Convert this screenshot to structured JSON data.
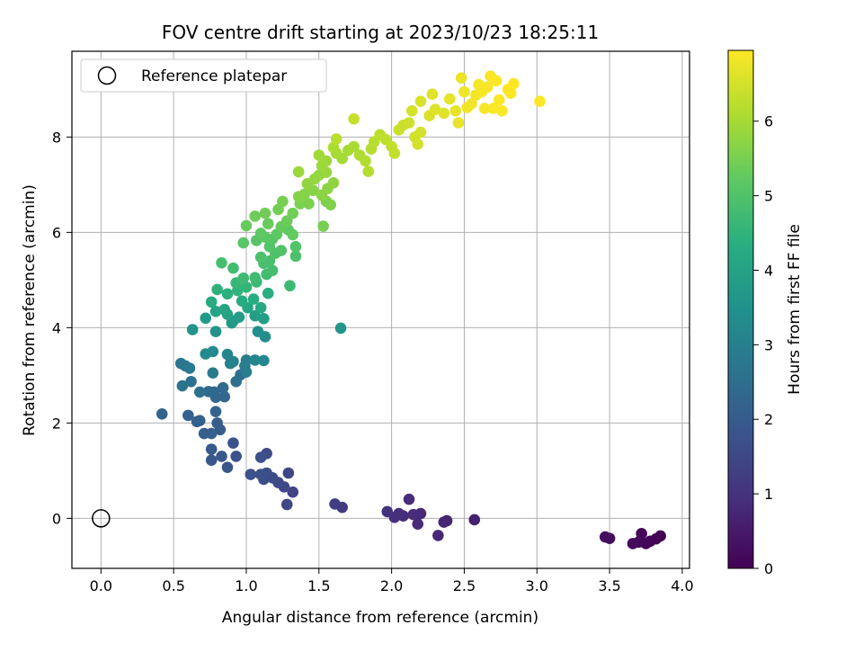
{
  "chart_data": {
    "type": "scatter",
    "title": "FOV centre drift starting at 2023/10/23 18:25:11",
    "xlabel": "Angular distance from reference (arcmin)",
    "ylabel": "Rotation from reference (arcmin)",
    "xlim": [
      -0.2,
      4.05
    ],
    "ylim": [
      -1.05,
      9.8
    ],
    "xticks": [
      "0.0",
      "0.5",
      "1.0",
      "1.5",
      "2.0",
      "2.5",
      "3.0",
      "3.5",
      "4.0"
    ],
    "yticks": [
      "0",
      "2",
      "4",
      "6",
      "8"
    ],
    "grid": true,
    "legend": {
      "position": "top-left",
      "entries": [
        "Reference platepar"
      ]
    },
    "colorbar": {
      "label": "Hours from first FF file",
      "colormap": "viridis",
      "range": [
        0,
        6.95
      ],
      "ticks": [
        "0",
        "1",
        "2",
        "3",
        "4",
        "5",
        "6"
      ]
    },
    "reference_point": {
      "x": 0.0,
      "y": 0.0,
      "marker": "open-circle",
      "color": "#000000"
    },
    "points": [
      {
        "x": 3.85,
        "y": -0.37,
        "h": 0.02
      },
      {
        "x": 3.82,
        "y": -0.43,
        "h": 0.05
      },
      {
        "x": 3.78,
        "y": -0.48,
        "h": 0.08
      },
      {
        "x": 3.75,
        "y": -0.53,
        "h": 0.1
      },
      {
        "x": 3.72,
        "y": -0.32,
        "h": 0.12
      },
      {
        "x": 3.7,
        "y": -0.5,
        "h": 0.15
      },
      {
        "x": 3.66,
        "y": -0.53,
        "h": 0.18
      },
      {
        "x": 3.5,
        "y": -0.42,
        "h": 0.22
      },
      {
        "x": 3.47,
        "y": -0.39,
        "h": 0.25
      },
      {
        "x": 2.57,
        "y": -0.03,
        "h": 0.6
      },
      {
        "x": 2.38,
        "y": -0.05,
        "h": 0.7
      },
      {
        "x": 2.36,
        "y": -0.08,
        "h": 0.72
      },
      {
        "x": 2.32,
        "y": -0.36,
        "h": 0.75
      },
      {
        "x": 2.2,
        "y": 0.1,
        "h": 0.8
      },
      {
        "x": 2.18,
        "y": -0.12,
        "h": 0.82
      },
      {
        "x": 2.15,
        "y": 0.08,
        "h": 0.85
      },
      {
        "x": 2.12,
        "y": 0.4,
        "h": 0.88
      },
      {
        "x": 2.08,
        "y": 0.05,
        "h": 0.9
      },
      {
        "x": 2.05,
        "y": 0.1,
        "h": 0.92
      },
      {
        "x": 2.02,
        "y": 0.02,
        "h": 0.95
      },
      {
        "x": 1.97,
        "y": 0.14,
        "h": 0.98
      },
      {
        "x": 1.66,
        "y": 0.23,
        "h": 1.2
      },
      {
        "x": 1.61,
        "y": 0.3,
        "h": 1.25
      },
      {
        "x": 1.32,
        "y": 0.55,
        "h": 1.4
      },
      {
        "x": 1.29,
        "y": 0.95,
        "h": 1.45
      },
      {
        "x": 1.28,
        "y": 0.29,
        "h": 1.48
      },
      {
        "x": 1.26,
        "y": 0.66,
        "h": 1.5
      },
      {
        "x": 1.22,
        "y": 0.75,
        "h": 1.55
      },
      {
        "x": 1.18,
        "y": 0.85,
        "h": 1.58
      },
      {
        "x": 1.14,
        "y": 1.36,
        "h": 1.6
      },
      {
        "x": 1.14,
        "y": 0.95,
        "h": 1.62
      },
      {
        "x": 1.12,
        "y": 0.82,
        "h": 1.65
      },
      {
        "x": 1.1,
        "y": 0.92,
        "h": 1.68
      },
      {
        "x": 1.1,
        "y": 1.28,
        "h": 1.7
      },
      {
        "x": 1.03,
        "y": 0.92,
        "h": 1.75
      },
      {
        "x": 0.93,
        "y": 1.3,
        "h": 1.78
      },
      {
        "x": 0.91,
        "y": 1.58,
        "h": 1.8
      },
      {
        "x": 0.87,
        "y": 1.07,
        "h": 1.85
      },
      {
        "x": 0.83,
        "y": 1.3,
        "h": 1.88
      },
      {
        "x": 0.76,
        "y": 1.22,
        "h": 1.9
      },
      {
        "x": 0.76,
        "y": 1.45,
        "h": 1.92
      },
      {
        "x": 0.82,
        "y": 1.86,
        "h": 2.0
      },
      {
        "x": 0.8,
        "y": 2.0,
        "h": 2.05
      },
      {
        "x": 0.76,
        "y": 1.78,
        "h": 2.08
      },
      {
        "x": 0.71,
        "y": 1.78,
        "h": 2.1
      },
      {
        "x": 0.68,
        "y": 2.05,
        "h": 2.12
      },
      {
        "x": 0.66,
        "y": 2.03,
        "h": 2.15
      },
      {
        "x": 0.6,
        "y": 2.16,
        "h": 2.18
      },
      {
        "x": 0.79,
        "y": 2.24,
        "h": 2.2
      },
      {
        "x": 0.42,
        "y": 2.19,
        "h": 2.25
      },
      {
        "x": 0.79,
        "y": 2.54,
        "h": 2.28
      },
      {
        "x": 0.85,
        "y": 2.55,
        "h": 2.3
      },
      {
        "x": 0.78,
        "y": 2.65,
        "h": 2.35
      },
      {
        "x": 0.74,
        "y": 2.66,
        "h": 2.38
      },
      {
        "x": 0.84,
        "y": 2.74,
        "h": 2.4
      },
      {
        "x": 0.96,
        "y": 3.01,
        "h": 2.45
      },
      {
        "x": 0.93,
        "y": 2.87,
        "h": 2.5
      },
      {
        "x": 0.68,
        "y": 2.65,
        "h": 2.55
      },
      {
        "x": 0.62,
        "y": 2.87,
        "h": 2.6
      },
      {
        "x": 0.56,
        "y": 2.78,
        "h": 2.65
      },
      {
        "x": 0.55,
        "y": 3.25,
        "h": 2.7
      },
      {
        "x": 0.58,
        "y": 3.2,
        "h": 2.75
      },
      {
        "x": 0.61,
        "y": 3.15,
        "h": 2.8
      },
      {
        "x": 0.77,
        "y": 3.05,
        "h": 2.85
      },
      {
        "x": 1.0,
        "y": 3.07,
        "h": 2.88
      },
      {
        "x": 0.99,
        "y": 3.2,
        "h": 2.92
      },
      {
        "x": 1.0,
        "y": 3.32,
        "h": 2.95
      },
      {
        "x": 0.91,
        "y": 3.29,
        "h": 3.0
      },
      {
        "x": 0.89,
        "y": 3.25,
        "h": 3.05
      },
      {
        "x": 0.87,
        "y": 3.44,
        "h": 3.1
      },
      {
        "x": 1.06,
        "y": 3.32,
        "h": 3.15
      },
      {
        "x": 1.12,
        "y": 3.31,
        "h": 3.2
      },
      {
        "x": 0.77,
        "y": 3.5,
        "h": 3.25
      },
      {
        "x": 0.72,
        "y": 3.45,
        "h": 3.3
      },
      {
        "x": 1.13,
        "y": 3.81,
        "h": 3.4
      },
      {
        "x": 1.08,
        "y": 3.92,
        "h": 3.45
      },
      {
        "x": 0.79,
        "y": 3.92,
        "h": 3.5
      },
      {
        "x": 0.63,
        "y": 3.96,
        "h": 3.55
      },
      {
        "x": 1.65,
        "y": 3.99,
        "h": 3.6
      },
      {
        "x": 0.9,
        "y": 4.1,
        "h": 3.65
      },
      {
        "x": 0.91,
        "y": 4.14,
        "h": 3.7
      },
      {
        "x": 0.72,
        "y": 4.2,
        "h": 3.75
      },
      {
        "x": 0.95,
        "y": 4.22,
        "h": 3.8
      },
      {
        "x": 1.06,
        "y": 4.25,
        "h": 3.85
      },
      {
        "x": 1.12,
        "y": 4.19,
        "h": 3.9
      },
      {
        "x": 0.87,
        "y": 4.28,
        "h": 3.95
      },
      {
        "x": 0.79,
        "y": 4.34,
        "h": 4.0
      },
      {
        "x": 0.85,
        "y": 4.38,
        "h": 4.05
      },
      {
        "x": 1.01,
        "y": 4.42,
        "h": 4.1
      },
      {
        "x": 1.1,
        "y": 4.42,
        "h": 4.15
      },
      {
        "x": 0.76,
        "y": 4.54,
        "h": 4.2
      },
      {
        "x": 0.97,
        "y": 4.56,
        "h": 4.25
      },
      {
        "x": 1.05,
        "y": 4.6,
        "h": 4.3
      },
      {
        "x": 1.15,
        "y": 4.72,
        "h": 4.35
      },
      {
        "x": 0.87,
        "y": 4.71,
        "h": 4.4
      },
      {
        "x": 0.8,
        "y": 4.8,
        "h": 4.45
      },
      {
        "x": 0.94,
        "y": 4.78,
        "h": 4.5
      },
      {
        "x": 1.0,
        "y": 4.85,
        "h": 4.55
      },
      {
        "x": 0.93,
        "y": 4.94,
        "h": 4.6
      },
      {
        "x": 1.07,
        "y": 4.96,
        "h": 4.65
      },
      {
        "x": 1.3,
        "y": 4.88,
        "h": 4.7
      },
      {
        "x": 0.98,
        "y": 5.04,
        "h": 4.72
      },
      {
        "x": 1.06,
        "y": 5.05,
        "h": 4.75
      },
      {
        "x": 1.14,
        "y": 5.12,
        "h": 4.78
      },
      {
        "x": 0.91,
        "y": 5.25,
        "h": 4.8
      },
      {
        "x": 1.18,
        "y": 5.2,
        "h": 4.82
      },
      {
        "x": 0.83,
        "y": 5.36,
        "h": 4.85
      },
      {
        "x": 1.12,
        "y": 5.35,
        "h": 4.88
      },
      {
        "x": 1.16,
        "y": 5.4,
        "h": 4.9
      },
      {
        "x": 1.34,
        "y": 5.5,
        "h": 4.92
      },
      {
        "x": 1.1,
        "y": 5.48,
        "h": 4.95
      },
      {
        "x": 1.2,
        "y": 5.56,
        "h": 4.98
      },
      {
        "x": 1.24,
        "y": 5.62,
        "h": 5.0
      },
      {
        "x": 1.34,
        "y": 5.7,
        "h": 5.02
      },
      {
        "x": 1.16,
        "y": 5.7,
        "h": 5.05
      },
      {
        "x": 1.07,
        "y": 5.83,
        "h": 5.08
      },
      {
        "x": 0.98,
        "y": 5.78,
        "h": 5.1
      },
      {
        "x": 1.18,
        "y": 5.86,
        "h": 5.12
      },
      {
        "x": 1.13,
        "y": 5.9,
        "h": 5.15
      },
      {
        "x": 1.21,
        "y": 5.96,
        "h": 5.18
      },
      {
        "x": 1.1,
        "y": 5.98,
        "h": 5.2
      },
      {
        "x": 1.29,
        "y": 6.05,
        "h": 5.22
      },
      {
        "x": 1.32,
        "y": 5.95,
        "h": 5.25
      },
      {
        "x": 1.24,
        "y": 6.12,
        "h": 5.28
      },
      {
        "x": 1.0,
        "y": 6.14,
        "h": 5.3
      },
      {
        "x": 1.15,
        "y": 6.18,
        "h": 5.32
      },
      {
        "x": 1.28,
        "y": 6.24,
        "h": 5.35
      },
      {
        "x": 1.06,
        "y": 6.34,
        "h": 5.38
      },
      {
        "x": 1.13,
        "y": 6.4,
        "h": 5.4
      },
      {
        "x": 1.32,
        "y": 6.4,
        "h": 5.42
      },
      {
        "x": 1.22,
        "y": 6.48,
        "h": 5.45
      },
      {
        "x": 1.53,
        "y": 6.13,
        "h": 5.48
      },
      {
        "x": 1.25,
        "y": 6.65,
        "h": 5.5
      },
      {
        "x": 1.37,
        "y": 6.6,
        "h": 5.52
      },
      {
        "x": 1.43,
        "y": 6.6,
        "h": 5.55
      },
      {
        "x": 1.55,
        "y": 6.65,
        "h": 5.58
      },
      {
        "x": 1.58,
        "y": 6.58,
        "h": 5.6
      },
      {
        "x": 1.36,
        "y": 6.75,
        "h": 5.62
      },
      {
        "x": 1.4,
        "y": 6.8,
        "h": 5.65
      },
      {
        "x": 1.46,
        "y": 6.88,
        "h": 5.68
      },
      {
        "x": 1.52,
        "y": 6.78,
        "h": 5.7
      },
      {
        "x": 1.56,
        "y": 6.92,
        "h": 5.72
      },
      {
        "x": 1.6,
        "y": 7.04,
        "h": 5.75
      },
      {
        "x": 1.42,
        "y": 7.02,
        "h": 5.78
      },
      {
        "x": 1.47,
        "y": 7.12,
        "h": 5.8
      },
      {
        "x": 1.5,
        "y": 7.2,
        "h": 5.82
      },
      {
        "x": 1.55,
        "y": 7.26,
        "h": 5.85
      },
      {
        "x": 1.36,
        "y": 7.27,
        "h": 5.88
      },
      {
        "x": 1.52,
        "y": 7.4,
        "h": 5.9
      },
      {
        "x": 1.55,
        "y": 7.5,
        "h": 5.92
      },
      {
        "x": 1.5,
        "y": 7.62,
        "h": 5.95
      },
      {
        "x": 1.66,
        "y": 7.55,
        "h": 5.98
      },
      {
        "x": 1.62,
        "y": 7.66,
        "h": 6.0
      },
      {
        "x": 1.7,
        "y": 7.72,
        "h": 6.02
      },
      {
        "x": 1.74,
        "y": 7.8,
        "h": 6.05
      },
      {
        "x": 1.6,
        "y": 7.78,
        "h": 6.08
      },
      {
        "x": 1.78,
        "y": 7.62,
        "h": 6.1
      },
      {
        "x": 1.82,
        "y": 7.5,
        "h": 6.12
      },
      {
        "x": 1.84,
        "y": 7.28,
        "h": 6.15
      },
      {
        "x": 1.86,
        "y": 7.75,
        "h": 6.18
      },
      {
        "x": 1.88,
        "y": 7.9,
        "h": 6.2
      },
      {
        "x": 1.62,
        "y": 7.96,
        "h": 6.22
      },
      {
        "x": 1.92,
        "y": 8.05,
        "h": 6.25
      },
      {
        "x": 1.96,
        "y": 7.95,
        "h": 6.28
      },
      {
        "x": 2.02,
        "y": 7.66,
        "h": 6.3
      },
      {
        "x": 2.0,
        "y": 7.8,
        "h": 6.32
      },
      {
        "x": 1.74,
        "y": 8.38,
        "h": 6.35
      },
      {
        "x": 2.05,
        "y": 8.15,
        "h": 6.38
      },
      {
        "x": 2.08,
        "y": 8.25,
        "h": 6.4
      },
      {
        "x": 2.12,
        "y": 8.3,
        "h": 6.42
      },
      {
        "x": 2.16,
        "y": 8.0,
        "h": 6.45
      },
      {
        "x": 2.18,
        "y": 7.85,
        "h": 6.48
      },
      {
        "x": 2.2,
        "y": 8.1,
        "h": 6.5
      },
      {
        "x": 2.14,
        "y": 8.55,
        "h": 6.52
      },
      {
        "x": 2.2,
        "y": 8.75,
        "h": 6.55
      },
      {
        "x": 2.26,
        "y": 8.45,
        "h": 6.58
      },
      {
        "x": 2.3,
        "y": 8.58,
        "h": 6.6
      },
      {
        "x": 2.28,
        "y": 8.9,
        "h": 6.62
      },
      {
        "x": 2.36,
        "y": 8.5,
        "h": 6.65
      },
      {
        "x": 2.4,
        "y": 8.8,
        "h": 6.68
      },
      {
        "x": 2.44,
        "y": 8.55,
        "h": 6.7
      },
      {
        "x": 2.46,
        "y": 8.3,
        "h": 6.72
      },
      {
        "x": 2.48,
        "y": 9.24,
        "h": 6.75
      },
      {
        "x": 2.5,
        "y": 8.95,
        "h": 6.78
      },
      {
        "x": 2.52,
        "y": 8.62,
        "h": 6.8
      },
      {
        "x": 2.55,
        "y": 8.7,
        "h": 6.82
      },
      {
        "x": 2.58,
        "y": 8.88,
        "h": 6.84
      },
      {
        "x": 2.6,
        "y": 9.1,
        "h": 6.86
      },
      {
        "x": 2.62,
        "y": 8.95,
        "h": 6.88
      },
      {
        "x": 2.64,
        "y": 8.6,
        "h": 6.89
      },
      {
        "x": 2.66,
        "y": 9.05,
        "h": 6.9
      },
      {
        "x": 2.68,
        "y": 9.28,
        "h": 6.91
      },
      {
        "x": 2.7,
        "y": 8.6,
        "h": 6.92
      },
      {
        "x": 2.72,
        "y": 9.18,
        "h": 6.93
      },
      {
        "x": 2.74,
        "y": 8.78,
        "h": 6.94
      },
      {
        "x": 2.76,
        "y": 8.55,
        "h": 6.94
      },
      {
        "x": 2.8,
        "y": 9.0,
        "h": 6.95
      },
      {
        "x": 2.82,
        "y": 8.92,
        "h": 6.95
      },
      {
        "x": 2.84,
        "y": 9.12,
        "h": 6.95
      },
      {
        "x": 3.02,
        "y": 8.75,
        "h": 6.95
      }
    ]
  }
}
